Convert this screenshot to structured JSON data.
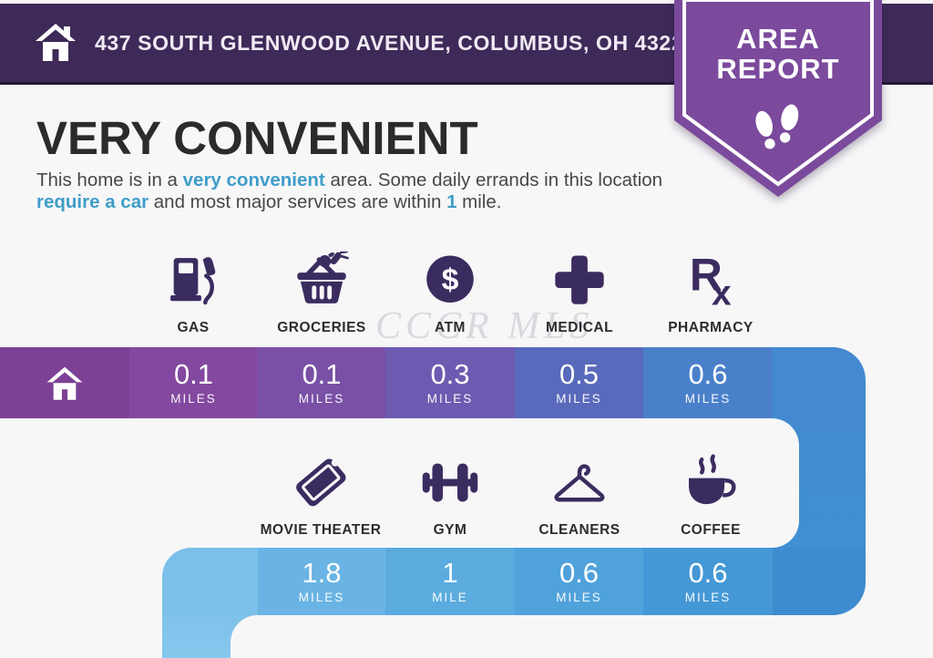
{
  "colors": {
    "page_bg": "#f7f7f8",
    "header_bg": "#3e2a58",
    "ribbon": "#7b4a9c",
    "accent_text": "#3f9dc9",
    "icon": "#3b2c60",
    "bar1": [
      "#7c4094",
      "#83489f",
      "#7950a6",
      "#6c5bb0",
      "#5969bb",
      "#4a80ca",
      "#438ad0"
    ],
    "col1": [
      "#438ad0",
      "#4090d2"
    ],
    "bar2": [
      "#7bc0e9",
      "#69b4e4",
      "#5babdf",
      "#50a2db",
      "#4598d6",
      "#3e8cd0"
    ],
    "col2": [
      "#7ec2ea",
      "#86c8ee"
    ]
  },
  "header": {
    "address": "437 SOUTH GLENWOOD AVENUE, COLUMBUS, OH 43223"
  },
  "ribbon": {
    "line1": "AREA",
    "line2": "REPORT"
  },
  "summary": {
    "title": "VERY CONVENIENT",
    "segments": [
      {
        "text": "This home is in a ",
        "highlight": false
      },
      {
        "text": "very convenient",
        "highlight": true
      },
      {
        "text": " area. Some daily errands in this location ",
        "highlight": false
      },
      {
        "text": "require a car",
        "highlight": true
      },
      {
        "text": " and most major services are within ",
        "highlight": false
      },
      {
        "text": "1",
        "highlight": true
      },
      {
        "text": " mile.",
        "highlight": false
      }
    ]
  },
  "watermark": "CCCR MLS",
  "row1": {
    "start_icon": "house",
    "items": [
      {
        "icon": "gas",
        "label": "GAS",
        "value": "0.1",
        "unit": "MILES"
      },
      {
        "icon": "groceries",
        "label": "GROCERIES",
        "value": "0.1",
        "unit": "MILES"
      },
      {
        "icon": "atm",
        "label": "ATM",
        "value": "0.3",
        "unit": "MILES"
      },
      {
        "icon": "medical",
        "label": "MEDICAL",
        "value": "0.5",
        "unit": "MILES"
      },
      {
        "icon": "pharmacy",
        "label": "PHARMACY",
        "value": "0.6",
        "unit": "MILES"
      }
    ]
  },
  "row2": {
    "items": [
      {
        "icon": "movie-theater",
        "label": "MOVIE THEATER",
        "value": "1.8",
        "unit": "MILES"
      },
      {
        "icon": "gym",
        "label": "GYM",
        "value": "1",
        "unit": "MILE"
      },
      {
        "icon": "cleaners",
        "label": "CLEANERS",
        "value": "0.6",
        "unit": "MILES"
      },
      {
        "icon": "coffee",
        "label": "COFFEE",
        "value": "0.6",
        "unit": "MILES"
      }
    ]
  }
}
